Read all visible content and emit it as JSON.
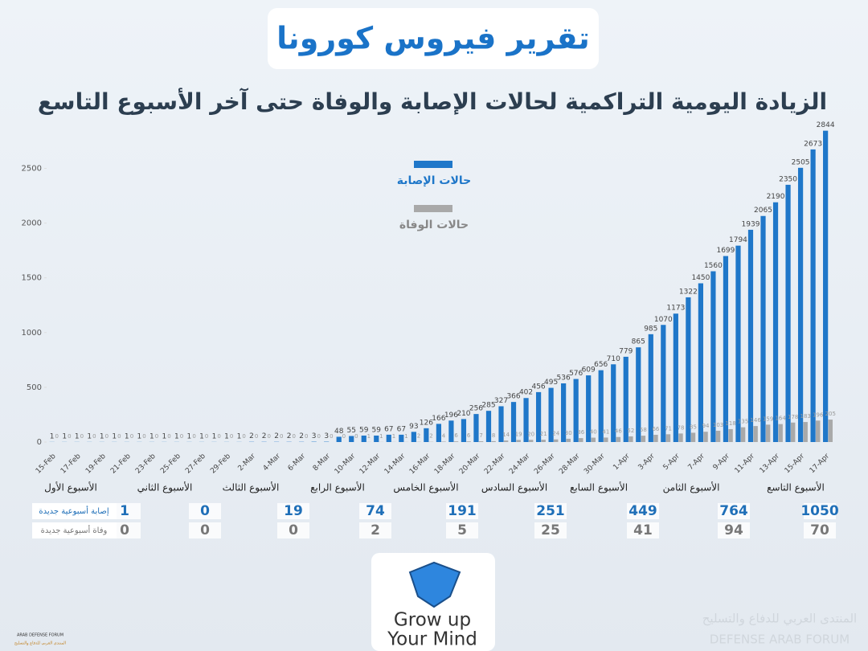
{
  "chart_data": {
    "type": "bar",
    "title": "تقرير فيروس كورونا",
    "subtitle": "الزيادة اليومية التراكمية لحالات الإصابة والوفاة حتى آخر الأسبوع التاسع",
    "categories": [
      "15-Feb",
      null,
      "17-Feb",
      null,
      "19-Feb",
      null,
      "21-Feb",
      null,
      "23-Feb",
      null,
      "25-Feb",
      null,
      "27-Feb",
      null,
      "29-Feb",
      null,
      "2-Mar",
      null,
      "4-Mar",
      null,
      "6-Mar",
      null,
      "8-Mar",
      null,
      "10-Mar",
      null,
      "12-Mar",
      null,
      "14-Mar",
      null,
      "16-Mar",
      null,
      "18-Mar",
      null,
      "20-Mar",
      null,
      "22-Mar",
      null,
      "24-Mar",
      null,
      "26-Mar",
      null,
      "28-Mar",
      null,
      "30-Mar",
      null,
      "1-Apr",
      null,
      "3-Apr",
      null,
      "5-Apr",
      null,
      "7-Apr",
      null,
      "9-Apr",
      null,
      "11-Apr",
      null,
      "13-Apr",
      null,
      "15-Apr",
      null,
      "17-Apr"
    ],
    "series": [
      {
        "name": "حالات الإصابة",
        "color": "#1f77c9",
        "values": [
          1,
          1,
          1,
          1,
          1,
          1,
          1,
          1,
          1,
          1,
          1,
          1,
          1,
          1,
          1,
          1,
          2,
          2,
          2,
          2,
          2,
          3,
          3,
          48,
          55,
          59,
          59,
          67,
          67,
          93,
          126,
          166,
          196,
          210,
          256,
          285,
          327,
          366,
          402,
          456,
          495,
          536,
          576,
          609,
          656,
          710,
          779,
          865,
          985,
          1070,
          1173,
          1322,
          1450,
          1560,
          1699,
          1794,
          1939,
          2065,
          2190,
          2350,
          2505,
          2673,
          2844
        ]
      },
      {
        "name": "حالات الوفاة",
        "color": "#a9a9a9",
        "values": [
          0,
          0,
          0,
          0,
          0,
          0,
          0,
          0,
          0,
          0,
          0,
          0,
          0,
          0,
          0,
          0,
          0,
          0,
          0,
          0,
          0,
          0,
          0,
          0,
          0,
          1,
          1,
          1,
          1,
          2,
          2,
          4,
          6,
          6,
          7,
          8,
          14,
          19,
          20,
          21,
          24,
          30,
          36,
          40,
          41,
          46,
          52,
          58,
          66,
          71,
          78,
          85,
          94,
          103,
          118,
          135,
          146,
          159,
          164,
          178,
          183,
          196,
          205
        ]
      }
    ],
    "ylim": [
      0,
      2900
    ],
    "yticks": [
      0,
      500,
      1000,
      1500,
      2000,
      2500
    ]
  },
  "weekly": {
    "weeks": [
      "الأسبوع الأول",
      "الأسبوع الثاني",
      "الأسبوع الثالث",
      "الأسبوع الرابع",
      "الأسبوع الخامس",
      "الأسبوع السادس",
      "الأسبوع السابع",
      "الأسبوع الثامن",
      "الأسبوع التاسع"
    ],
    "rows": [
      {
        "label": "إصابة أسبوعية جديدة",
        "values": [
          1,
          0,
          19,
          74,
          191,
          251,
          449,
          764,
          1050
        ]
      },
      {
        "label": "وفاة أسبوعية جديدة",
        "values": [
          0,
          0,
          0,
          2,
          5,
          25,
          41,
          94,
          70
        ]
      }
    ]
  },
  "logo": {
    "line1": "Grow up",
    "line2": "Your Mind"
  },
  "watermark": {
    "left_en": "ARAB DEFENSE FORUM",
    "left_ar": "المنتدى العربي للدفاع والتسليح",
    "right_ar": "المنتدى العربي للدفاع والتسليح",
    "right_en": "DEFENSE ARAB FORUM"
  }
}
